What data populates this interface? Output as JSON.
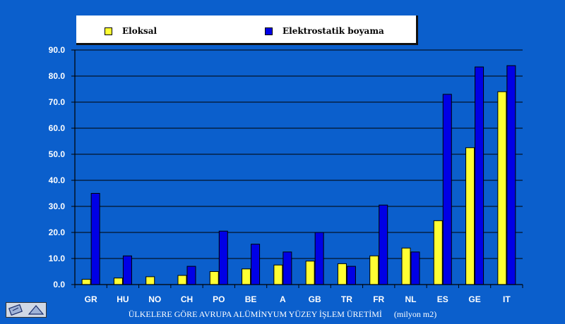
{
  "legend": {
    "items": [
      {
        "label": "Eloksal",
        "color": "#ffff33"
      },
      {
        "label": "Elektrostatik boyama",
        "color": "#0000e6"
      }
    ]
  },
  "chart_data": {
    "type": "bar",
    "title": "",
    "xlabel": "ÜLKELERE GÖRE AVRUPA ALÜMİNYUM YÜZEY İŞLEM ÜRETİMİ",
    "xlabel_unit": "(milyon m2)",
    "ylabel": "",
    "ylim": [
      0,
      90
    ],
    "yticks": [
      "0.0",
      "10.0",
      "20.0",
      "30.0",
      "40.0",
      "50.0",
      "60.0",
      "70.0",
      "80.0",
      "90.0"
    ],
    "grid": true,
    "legend_position": "top",
    "categories": [
      "GR",
      "HU",
      "NO",
      "CH",
      "PO",
      "BE",
      "A",
      "GB",
      "TR",
      "FR",
      "NL",
      "ES",
      "GE",
      "IT"
    ],
    "series": [
      {
        "name": "Eloksal",
        "color": "#ffff33",
        "values": [
          2.0,
          2.5,
          3.0,
          3.5,
          5.0,
          6.0,
          7.5,
          9.0,
          8.0,
          11.0,
          14.0,
          24.5,
          52.5,
          74.0
        ]
      },
      {
        "name": "Elektrostatik boyama",
        "color": "#0000e6",
        "values": [
          35.0,
          11.0,
          0,
          7.0,
          20.5,
          15.5,
          12.5,
          20.0,
          7.0,
          30.5,
          12.5,
          73.0,
          83.5,
          84.0
        ]
      }
    ]
  },
  "colors": {
    "background": "#0b5fcc",
    "plot_area": "#0b5fcc",
    "gridline": "#000000"
  }
}
